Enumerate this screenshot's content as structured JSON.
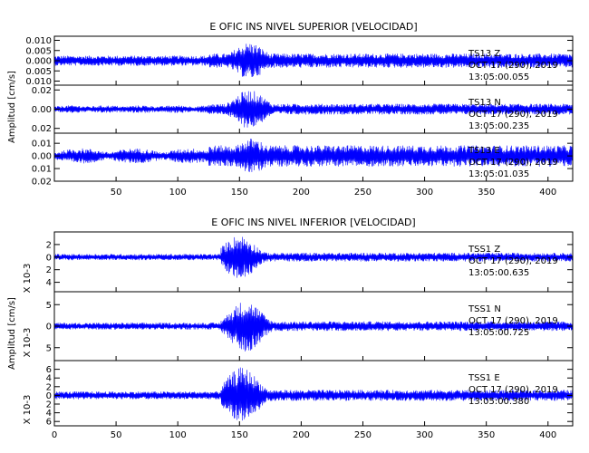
{
  "chart_data": {
    "type": "line",
    "trace_color": "#0000ff",
    "groups": [
      {
        "title": "E OFIC INS NIVEL SUPERIOR [VELOCIDAD]",
        "ylabel": "Amplitud [cm/s]",
        "xlim": [
          0,
          420
        ],
        "xticks": [
          50,
          100,
          150,
          200,
          250,
          300,
          350,
          400
        ],
        "xtick_labels": [
          "50",
          "100",
          "150",
          "200",
          "250",
          "300",
          "350",
          "400"
        ],
        "panels": [
          {
            "ylim": [
              -0.012,
              0.012
            ],
            "yticks": [
              -0.01,
              -0.005,
              0.0,
              0.005,
              0.01
            ],
            "ytick_labels": [
              "0.010",
              "0.005",
              "0.000",
              "0.005",
              "0.010"
            ],
            "annotation": [
              "TS13 Z",
              "OCT 17 (290), 2019",
              "13:05:00.055"
            ],
            "series": {
              "name": "TS13 Z",
              "onset_s": 125,
              "peak_s": 158,
              "background_amp": 0.0025,
              "peak_amp": 0.009,
              "modulation": "none"
            }
          },
          {
            "ylim": [
              -0.025,
              0.025
            ],
            "yticks": [
              -0.02,
              0.0,
              0.02
            ],
            "ytick_labels": [
              "0.02",
              "0.00",
              "0.02"
            ],
            "annotation": [
              "TS13 N",
              "OCT 17 (290), 2019",
              "13:05:00.235"
            ],
            "series": {
              "name": "TS13 N",
              "onset_s": 125,
              "peak_s": 158,
              "background_amp": 0.004,
              "peak_amp": 0.02,
              "modulation": "slight"
            }
          },
          {
            "ylim": [
              -0.02,
              0.018
            ],
            "yticks": [
              -0.02,
              -0.01,
              0.0,
              0.01
            ],
            "ytick_labels": [
              "0.02",
              "0.01",
              "0.00",
              "0.01"
            ],
            "annotation": [
              "TS13 E",
              "OCT 17 (290), 2019",
              "13:05:01.035"
            ],
            "series": {
              "name": "TS13 E",
              "onset_s": 125,
              "peak_s": 160,
              "background_amp": 0.006,
              "peak_amp": 0.014,
              "modulation": "strong"
            }
          }
        ]
      },
      {
        "title": "E OFIC INS NIVEL INFERIOR [VELOCIDAD]",
        "ylabel": "Amplitud [cm/s]",
        "scale_label": "X 10-3",
        "xlim": [
          0,
          420
        ],
        "xticks": [
          0,
          50,
          100,
          150,
          200,
          250,
          300,
          350,
          400
        ],
        "xtick_labels": [
          "0",
          "50",
          "100",
          "150",
          "200",
          "250",
          "300",
          "350",
          "400"
        ],
        "panels": [
          {
            "ylim": [
              -5.5,
              4
            ],
            "yticks": [
              -4,
              -2,
              0,
              2
            ],
            "ytick_labels": [
              "4",
              "2",
              "0",
              "2"
            ],
            "annotation": [
              "TSS1 Z",
              "OCT 17 (290), 2019",
              "13:05:00.635"
            ],
            "series": {
              "name": "TSS1 Z",
              "onset_s": 135,
              "peak_s": 150,
              "background_amp": 0.5,
              "peak_amp": 3.5,
              "modulation": "none"
            }
          },
          {
            "ylim": [
              -8,
              8
            ],
            "yticks": [
              -5,
              0,
              5
            ],
            "ytick_labels": [
              "5",
              "0",
              "5"
            ],
            "annotation": [
              "TSS1 N",
              "OCT 17 (290), 2019",
              "13:05:00.725"
            ],
            "series": {
              "name": "TSS1 N",
              "onset_s": 135,
              "peak_s": 155,
              "background_amp": 0.8,
              "peak_amp": 6,
              "modulation": "none"
            }
          },
          {
            "ylim": [
              -7,
              8
            ],
            "yticks": [
              -6,
              -4,
              -2,
              0,
              2,
              4,
              6
            ],
            "ytick_labels": [
              "6",
              "4",
              "2",
              "0",
              "2",
              "4",
              "6"
            ],
            "annotation": [
              "TSS1 E",
              "OCT 17 (290), 2019",
              "13:05:00.380"
            ],
            "series": {
              "name": "TSS1 E",
              "onset_s": 135,
              "peak_s": 152,
              "background_amp": 0.9,
              "peak_amp": 6.5,
              "modulation": "none"
            }
          }
        ]
      }
    ]
  }
}
